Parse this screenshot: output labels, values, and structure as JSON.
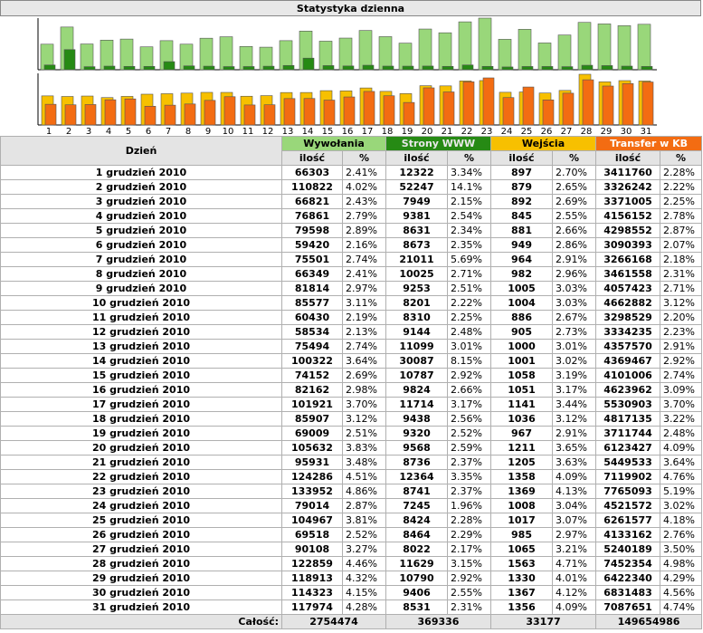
{
  "title": "Statystyka dzienna",
  "headers": {
    "day": "Dzień",
    "groups": [
      "Wywołania",
      "Strony WWW",
      "Wejścia",
      "Transfer w KB"
    ],
    "count": "ilość",
    "pct": "%"
  },
  "totals": {
    "label": "Całość:",
    "values": [
      "2754474",
      "369336",
      "33177",
      "149654986"
    ]
  },
  "colors": {
    "wywolania": "#99d77a",
    "strony": "#268a14",
    "wejscia": "#f7c000",
    "transfer": "#f36c12"
  },
  "rows": [
    {
      "day": "1 grudzień 2010",
      "w": "66303",
      "wp": "2.41%",
      "s": "12322",
      "sp": "3.34%",
      "e": "897",
      "ep": "2.70%",
      "t": "3411760",
      "tp": "2.28%"
    },
    {
      "day": "2 grudzień 2010",
      "w": "110822",
      "wp": "4.02%",
      "s": "52247",
      "sp": "14.1%",
      "e": "879",
      "ep": "2.65%",
      "t": "3326242",
      "tp": "2.22%"
    },
    {
      "day": "3 grudzień 2010",
      "w": "66821",
      "wp": "2.43%",
      "s": "7949",
      "sp": "2.15%",
      "e": "892",
      "ep": "2.69%",
      "t": "3371005",
      "tp": "2.25%"
    },
    {
      "day": "4 grudzień 2010",
      "w": "76861",
      "wp": "2.79%",
      "s": "9381",
      "sp": "2.54%",
      "e": "845",
      "ep": "2.55%",
      "t": "4156152",
      "tp": "2.78%"
    },
    {
      "day": "5 grudzień 2010",
      "w": "79598",
      "wp": "2.89%",
      "s": "8631",
      "sp": "2.34%",
      "e": "881",
      "ep": "2.66%",
      "t": "4298552",
      "tp": "2.87%"
    },
    {
      "day": "6 grudzień 2010",
      "w": "59420",
      "wp": "2.16%",
      "s": "8673",
      "sp": "2.35%",
      "e": "949",
      "ep": "2.86%",
      "t": "3090393",
      "tp": "2.07%"
    },
    {
      "day": "7 grudzień 2010",
      "w": "75501",
      "wp": "2.74%",
      "s": "21011",
      "sp": "5.69%",
      "e": "964",
      "ep": "2.91%",
      "t": "3266168",
      "tp": "2.18%"
    },
    {
      "day": "8 grudzień 2010",
      "w": "66349",
      "wp": "2.41%",
      "s": "10025",
      "sp": "2.71%",
      "e": "982",
      "ep": "2.96%",
      "t": "3461558",
      "tp": "2.31%"
    },
    {
      "day": "9 grudzień 2010",
      "w": "81814",
      "wp": "2.97%",
      "s": "9253",
      "sp": "2.51%",
      "e": "1005",
      "ep": "3.03%",
      "t": "4057423",
      "tp": "2.71%"
    },
    {
      "day": "10 grudzień 2010",
      "w": "85577",
      "wp": "3.11%",
      "s": "8201",
      "sp": "2.22%",
      "e": "1004",
      "ep": "3.03%",
      "t": "4662882",
      "tp": "3.12%"
    },
    {
      "day": "11 grudzień 2010",
      "w": "60430",
      "wp": "2.19%",
      "s": "8310",
      "sp": "2.25%",
      "e": "886",
      "ep": "2.67%",
      "t": "3298529",
      "tp": "2.20%"
    },
    {
      "day": "12 grudzień 2010",
      "w": "58534",
      "wp": "2.13%",
      "s": "9144",
      "sp": "2.48%",
      "e": "905",
      "ep": "2.73%",
      "t": "3334235",
      "tp": "2.23%"
    },
    {
      "day": "13 grudzień 2010",
      "w": "75494",
      "wp": "2.74%",
      "s": "11099",
      "sp": "3.01%",
      "e": "1000",
      "ep": "3.01%",
      "t": "4357570",
      "tp": "2.91%"
    },
    {
      "day": "14 grudzień 2010",
      "w": "100322",
      "wp": "3.64%",
      "s": "30087",
      "sp": "8.15%",
      "e": "1001",
      "ep": "3.02%",
      "t": "4369467",
      "tp": "2.92%"
    },
    {
      "day": "15 grudzień 2010",
      "w": "74152",
      "wp": "2.69%",
      "s": "10787",
      "sp": "2.92%",
      "e": "1058",
      "ep": "3.19%",
      "t": "4101006",
      "tp": "2.74%"
    },
    {
      "day": "16 grudzień 2010",
      "w": "82162",
      "wp": "2.98%",
      "s": "9824",
      "sp": "2.66%",
      "e": "1051",
      "ep": "3.17%",
      "t": "4623962",
      "tp": "3.09%"
    },
    {
      "day": "17 grudzień 2010",
      "w": "101921",
      "wp": "3.70%",
      "s": "11714",
      "sp": "3.17%",
      "e": "1141",
      "ep": "3.44%",
      "t": "5530903",
      "tp": "3.70%"
    },
    {
      "day": "18 grudzień 2010",
      "w": "85907",
      "wp": "3.12%",
      "s": "9438",
      "sp": "2.56%",
      "e": "1036",
      "ep": "3.12%",
      "t": "4817135",
      "tp": "3.22%"
    },
    {
      "day": "19 grudzień 2010",
      "w": "69009",
      "wp": "2.51%",
      "s": "9320",
      "sp": "2.52%",
      "e": "967",
      "ep": "2.91%",
      "t": "3711744",
      "tp": "2.48%"
    },
    {
      "day": "20 grudzień 2010",
      "w": "105632",
      "wp": "3.83%",
      "s": "9568",
      "sp": "2.59%",
      "e": "1211",
      "ep": "3.65%",
      "t": "6123427",
      "tp": "4.09%"
    },
    {
      "day": "21 grudzień 2010",
      "w": "95931",
      "wp": "3.48%",
      "s": "8736",
      "sp": "2.37%",
      "e": "1205",
      "ep": "3.63%",
      "t": "5449533",
      "tp": "3.64%"
    },
    {
      "day": "22 grudzień 2010",
      "w": "124286",
      "wp": "4.51%",
      "s": "12364",
      "sp": "3.35%",
      "e": "1358",
      "ep": "4.09%",
      "t": "7119902",
      "tp": "4.76%"
    },
    {
      "day": "23 grudzień 2010",
      "w": "133952",
      "wp": "4.86%",
      "s": "8741",
      "sp": "2.37%",
      "e": "1369",
      "ep": "4.13%",
      "t": "7765093",
      "tp": "5.19%"
    },
    {
      "day": "24 grudzień 2010",
      "w": "79014",
      "wp": "2.87%",
      "s": "7245",
      "sp": "1.96%",
      "e": "1008",
      "ep": "3.04%",
      "t": "4521572",
      "tp": "3.02%"
    },
    {
      "day": "25 grudzień 2010",
      "w": "104967",
      "wp": "3.81%",
      "s": "8424",
      "sp": "2.28%",
      "e": "1017",
      "ep": "3.07%",
      "t": "6261577",
      "tp": "4.18%"
    },
    {
      "day": "26 grudzień 2010",
      "w": "69518",
      "wp": "2.52%",
      "s": "8464",
      "sp": "2.29%",
      "e": "985",
      "ep": "2.97%",
      "t": "4133162",
      "tp": "2.76%"
    },
    {
      "day": "27 grudzień 2010",
      "w": "90108",
      "wp": "3.27%",
      "s": "8022",
      "sp": "2.17%",
      "e": "1065",
      "ep": "3.21%",
      "t": "5240189",
      "tp": "3.50%"
    },
    {
      "day": "28 grudzień 2010",
      "w": "122859",
      "wp": "4.46%",
      "s": "11629",
      "sp": "3.15%",
      "e": "1563",
      "ep": "4.71%",
      "t": "7452354",
      "tp": "4.98%"
    },
    {
      "day": "29 grudzień 2010",
      "w": "118913",
      "wp": "4.32%",
      "s": "10790",
      "sp": "2.92%",
      "e": "1330",
      "ep": "4.01%",
      "t": "6422340",
      "tp": "4.29%"
    },
    {
      "day": "30 grudzień 2010",
      "w": "114323",
      "wp": "4.15%",
      "s": "9406",
      "sp": "2.55%",
      "e": "1367",
      "ep": "4.12%",
      "t": "6831483",
      "tp": "4.56%"
    },
    {
      "day": "31 grudzień 2010",
      "w": "117974",
      "wp": "4.28%",
      "s": "8531",
      "sp": "2.31%",
      "e": "1356",
      "ep": "4.09%",
      "t": "7087651",
      "tp": "4.74%"
    }
  ],
  "chart_data": {
    "type": "bar",
    "title": "Statystyka dzienna",
    "categories": [
      "1",
      "2",
      "3",
      "4",
      "5",
      "6",
      "7",
      "8",
      "9",
      "10",
      "11",
      "12",
      "13",
      "14",
      "15",
      "16",
      "17",
      "18",
      "19",
      "20",
      "21",
      "22",
      "23",
      "24",
      "25",
      "26",
      "27",
      "28",
      "29",
      "30",
      "31"
    ],
    "series": [
      {
        "name": "Wywołania",
        "values": [
          66303,
          110822,
          66821,
          76861,
          79598,
          59420,
          75501,
          66349,
          81814,
          85577,
          60430,
          58534,
          75494,
          100322,
          74152,
          82162,
          101921,
          85907,
          69009,
          105632,
          95931,
          124286,
          133952,
          79014,
          104967,
          69518,
          90108,
          122859,
          118913,
          114323,
          117974
        ]
      },
      {
        "name": "Strony WWW",
        "values": [
          12322,
          52247,
          7949,
          9381,
          8631,
          8673,
          21011,
          10025,
          9253,
          8201,
          8310,
          9144,
          11099,
          30087,
          10787,
          9824,
          11714,
          9438,
          9320,
          9568,
          8736,
          12364,
          8741,
          7245,
          8424,
          8464,
          8022,
          11629,
          10790,
          9406,
          8531
        ]
      },
      {
        "name": "Wejścia",
        "values": [
          897,
          879,
          892,
          845,
          881,
          949,
          964,
          982,
          1005,
          1004,
          886,
          905,
          1000,
          1001,
          1058,
          1051,
          1141,
          1036,
          967,
          1211,
          1205,
          1358,
          1369,
          1008,
          1017,
          985,
          1065,
          1563,
          1330,
          1367,
          1356
        ]
      },
      {
        "name": "Transfer w KB",
        "values": [
          3411760,
          3326242,
          3371005,
          4156152,
          4298552,
          3090393,
          3266168,
          3461558,
          4057423,
          4662882,
          3298529,
          3334235,
          4357570,
          4369467,
          4101006,
          4623962,
          5530903,
          4817135,
          3711744,
          6123427,
          5449533,
          7119902,
          7765093,
          4521572,
          6261577,
          4133162,
          5240189,
          7452354,
          6422340,
          6831483,
          7087651
        ]
      }
    ]
  }
}
